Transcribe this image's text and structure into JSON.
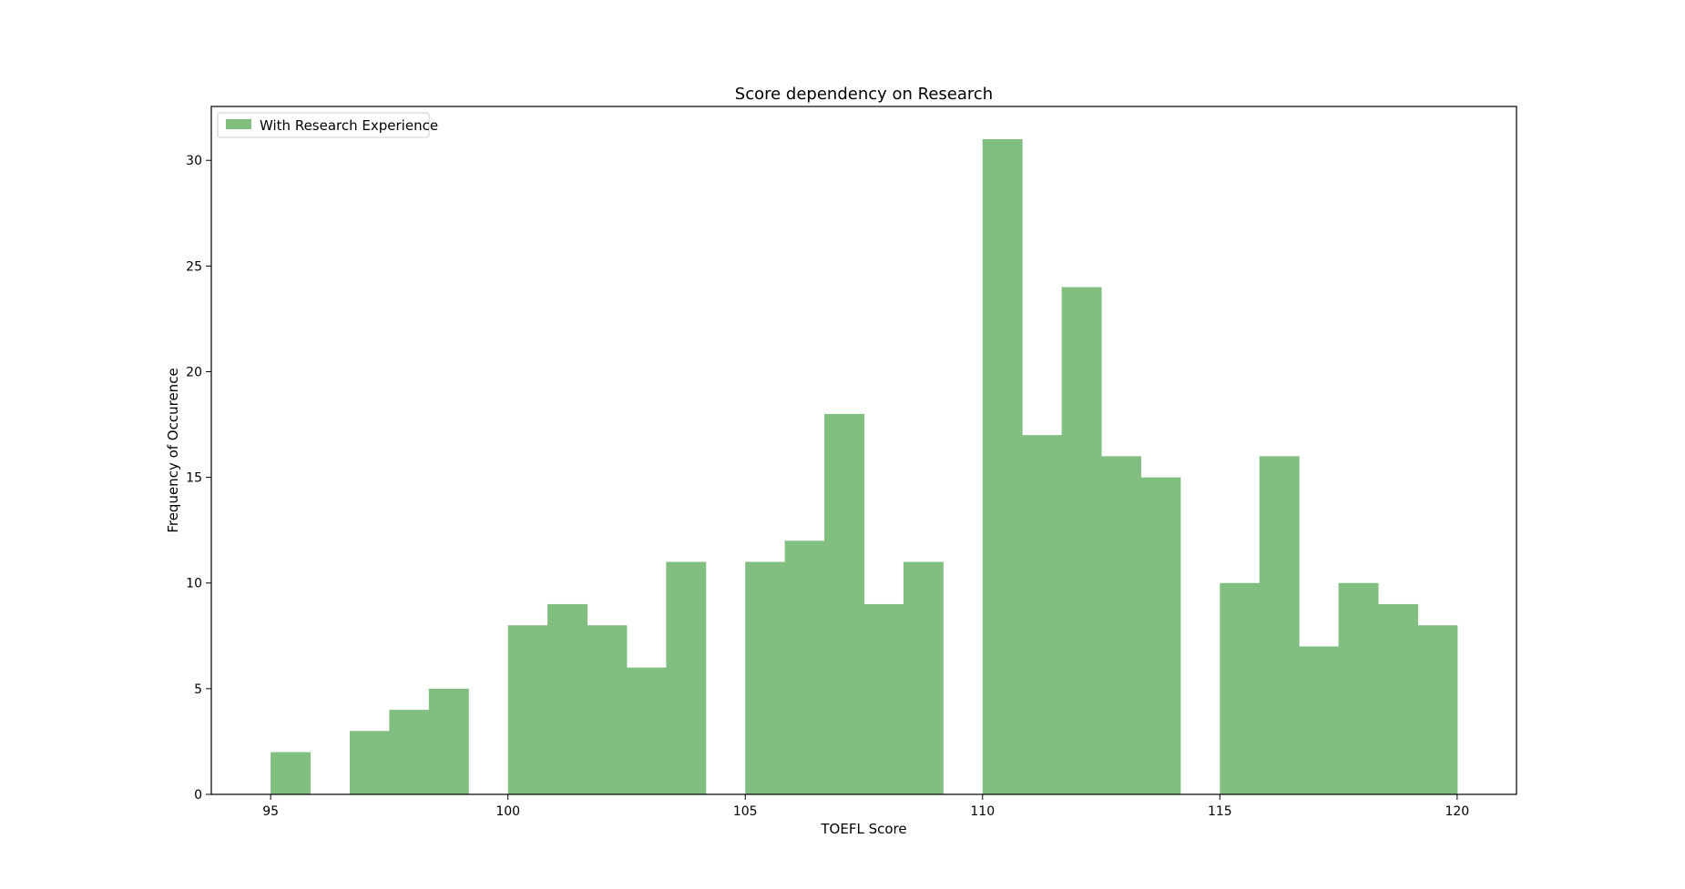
{
  "chart_data": {
    "type": "bar",
    "title": "Score dependency on Research",
    "xlabel": "TOEFL Score",
    "ylabel": "Frequency of Occurence",
    "xlim": [
      93.75,
      121.25
    ],
    "ylim": [
      0,
      32.55
    ],
    "xticks": [
      95,
      100,
      105,
      110,
      115,
      120
    ],
    "yticks": [
      0,
      5,
      10,
      15,
      20,
      25,
      30
    ],
    "grid": false,
    "legend_position": "top-left",
    "series": [
      {
        "name": "With Research Experience",
        "color": "#80bf80",
        "bin_edges": [
          95.0,
          95.8333,
          96.6667,
          97.5,
          98.3333,
          99.1667,
          100.0,
          100.8333,
          101.6667,
          102.5,
          103.3333,
          104.1667,
          105.0,
          105.8333,
          106.6667,
          107.5,
          108.3333,
          109.1667,
          110.0,
          110.8333,
          111.6667,
          112.5,
          113.3333,
          114.1667,
          115.0,
          115.8333,
          116.6667,
          117.5,
          118.3333,
          119.1667,
          120.0
        ],
        "counts": [
          2,
          0,
          3,
          4,
          5,
          0,
          8,
          9,
          8,
          6,
          11,
          0,
          11,
          12,
          18,
          9,
          11,
          0,
          31,
          17,
          24,
          16,
          15,
          0,
          10,
          16,
          7,
          10,
          9,
          8
        ]
      }
    ]
  }
}
